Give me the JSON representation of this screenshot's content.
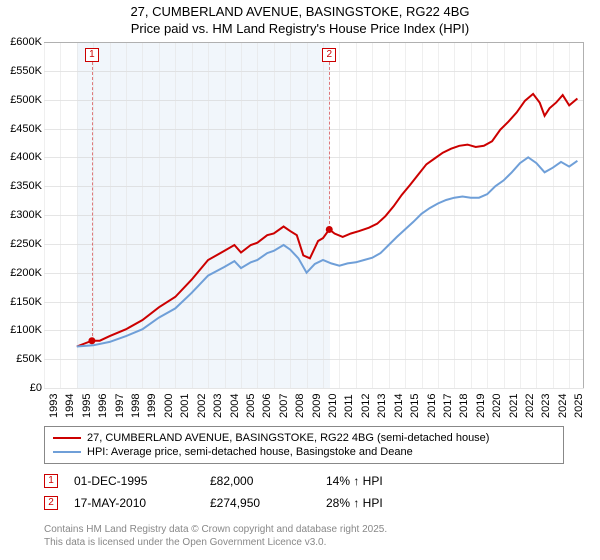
{
  "title_line1": "27, CUMBERLAND AVENUE, BASINGSTOKE, RG22 4BG",
  "title_line2": "Price paid vs. HM Land Registry's House Price Index (HPI)",
  "chart": {
    "type": "line",
    "background_color": "#ffffff",
    "grid_color": "#cfcfcf",
    "shade_color": "#e6eef7",
    "xlim": [
      1993,
      2025.9
    ],
    "ylim": [
      0,
      600000
    ],
    "ytick_step": 50000,
    "y_ticks": [
      "£0",
      "£50K",
      "£100K",
      "£150K",
      "£200K",
      "£250K",
      "£300K",
      "£350K",
      "£400K",
      "£450K",
      "£500K",
      "£550K",
      "£600K"
    ],
    "x_ticks": [
      1993,
      1994,
      1995,
      1996,
      1997,
      1998,
      1999,
      2000,
      2001,
      2002,
      2003,
      2004,
      2005,
      2006,
      2007,
      2008,
      2009,
      2010,
      2011,
      2012,
      2013,
      2014,
      2015,
      2016,
      2017,
      2018,
      2019,
      2020,
      2021,
      2022,
      2023,
      2024,
      2025
    ],
    "label_fontsize": 11,
    "title_fontsize": 13,
    "shade_range": [
      1995.0,
      2010.4
    ],
    "series": [
      {
        "name": "price_paid",
        "label": "27, CUMBERLAND AVENUE, BASINGSTOKE, RG22 4BG (semi-detached house)",
        "color": "#cc0000",
        "line_width": 2,
        "data": [
          [
            1995.0,
            72000
          ],
          [
            1995.92,
            82000
          ],
          [
            1996.4,
            82000
          ],
          [
            1997.0,
            90000
          ],
          [
            1998.0,
            102000
          ],
          [
            1999.0,
            118000
          ],
          [
            2000.0,
            140000
          ],
          [
            2001.0,
            158000
          ],
          [
            2002.0,
            188000
          ],
          [
            2003.0,
            222000
          ],
          [
            2004.0,
            238000
          ],
          [
            2004.6,
            248000
          ],
          [
            2005.0,
            235000
          ],
          [
            2005.6,
            248000
          ],
          [
            2006.0,
            252000
          ],
          [
            2006.6,
            265000
          ],
          [
            2007.0,
            268000
          ],
          [
            2007.6,
            280000
          ],
          [
            2008.0,
            272000
          ],
          [
            2008.4,
            265000
          ],
          [
            2008.8,
            230000
          ],
          [
            2009.2,
            225000
          ],
          [
            2009.7,
            255000
          ],
          [
            2010.0,
            260000
          ],
          [
            2010.38,
            274950
          ],
          [
            2010.7,
            268000
          ],
          [
            2011.2,
            262000
          ],
          [
            2011.7,
            268000
          ],
          [
            2012.2,
            272000
          ],
          [
            2012.8,
            278000
          ],
          [
            2013.3,
            285000
          ],
          [
            2013.8,
            298000
          ],
          [
            2014.3,
            315000
          ],
          [
            2014.8,
            335000
          ],
          [
            2015.3,
            352000
          ],
          [
            2015.8,
            370000
          ],
          [
            2016.3,
            388000
          ],
          [
            2016.8,
            398000
          ],
          [
            2017.3,
            408000
          ],
          [
            2017.8,
            415000
          ],
          [
            2018.3,
            420000
          ],
          [
            2018.8,
            422000
          ],
          [
            2019.3,
            418000
          ],
          [
            2019.8,
            420000
          ],
          [
            2020.3,
            428000
          ],
          [
            2020.8,
            448000
          ],
          [
            2021.3,
            462000
          ],
          [
            2021.8,
            478000
          ],
          [
            2022.3,
            498000
          ],
          [
            2022.8,
            510000
          ],
          [
            2023.2,
            495000
          ],
          [
            2023.5,
            472000
          ],
          [
            2023.8,
            485000
          ],
          [
            2024.2,
            495000
          ],
          [
            2024.6,
            508000
          ],
          [
            2025.0,
            490000
          ],
          [
            2025.5,
            502000
          ]
        ],
        "sale_points": [
          {
            "idx": 1,
            "x": 1995.92,
            "y": 82000
          },
          {
            "idx": 2,
            "x": 2010.38,
            "y": 274950
          }
        ]
      },
      {
        "name": "hpi",
        "label": "HPI: Average price, semi-detached house, Basingstoke and Deane",
        "color": "#6f9fd8",
        "line_width": 2,
        "data": [
          [
            1995.0,
            72000
          ],
          [
            1996.0,
            74000
          ],
          [
            1997.0,
            80000
          ],
          [
            1998.0,
            90000
          ],
          [
            1999.0,
            102000
          ],
          [
            2000.0,
            122000
          ],
          [
            2001.0,
            138000
          ],
          [
            2002.0,
            165000
          ],
          [
            2003.0,
            195000
          ],
          [
            2004.0,
            210000
          ],
          [
            2004.6,
            220000
          ],
          [
            2005.0,
            208000
          ],
          [
            2005.6,
            218000
          ],
          [
            2006.0,
            222000
          ],
          [
            2006.6,
            234000
          ],
          [
            2007.0,
            238000
          ],
          [
            2007.6,
            248000
          ],
          [
            2008.0,
            240000
          ],
          [
            2008.5,
            225000
          ],
          [
            2009.0,
            200000
          ],
          [
            2009.5,
            215000
          ],
          [
            2010.0,
            222000
          ],
          [
            2010.5,
            216000
          ],
          [
            2011.0,
            212000
          ],
          [
            2011.5,
            216000
          ],
          [
            2012.0,
            218000
          ],
          [
            2012.5,
            222000
          ],
          [
            2013.0,
            226000
          ],
          [
            2013.5,
            234000
          ],
          [
            2014.0,
            248000
          ],
          [
            2014.5,
            262000
          ],
          [
            2015.0,
            275000
          ],
          [
            2015.5,
            288000
          ],
          [
            2016.0,
            302000
          ],
          [
            2016.5,
            312000
          ],
          [
            2017.0,
            320000
          ],
          [
            2017.5,
            326000
          ],
          [
            2018.0,
            330000
          ],
          [
            2018.5,
            332000
          ],
          [
            2019.0,
            330000
          ],
          [
            2019.5,
            330000
          ],
          [
            2020.0,
            336000
          ],
          [
            2020.5,
            350000
          ],
          [
            2021.0,
            360000
          ],
          [
            2021.5,
            374000
          ],
          [
            2022.0,
            390000
          ],
          [
            2022.5,
            400000
          ],
          [
            2023.0,
            390000
          ],
          [
            2023.5,
            374000
          ],
          [
            2024.0,
            382000
          ],
          [
            2024.5,
            392000
          ],
          [
            2025.0,
            384000
          ],
          [
            2025.5,
            394000
          ]
        ]
      }
    ]
  },
  "legend": {
    "border_color": "#888888",
    "items": [
      {
        "color": "#cc0000",
        "label": "27, CUMBERLAND AVENUE, BASINGSTOKE, RG22 4BG (semi-detached house)"
      },
      {
        "color": "#6f9fd8",
        "label": "HPI: Average price, semi-detached house, Basingstoke and Deane"
      }
    ]
  },
  "sales": [
    {
      "n": "1",
      "date": "01-DEC-1995",
      "price": "£82,000",
      "diff": "14% ↑ HPI"
    },
    {
      "n": "2",
      "date": "17-MAY-2010",
      "price": "£274,950",
      "diff": "28% ↑ HPI"
    }
  ],
  "footer_line1": "Contains HM Land Registry data © Crown copyright and database right 2025.",
  "footer_line2": "This data is licensed under the Open Government Licence v3.0."
}
